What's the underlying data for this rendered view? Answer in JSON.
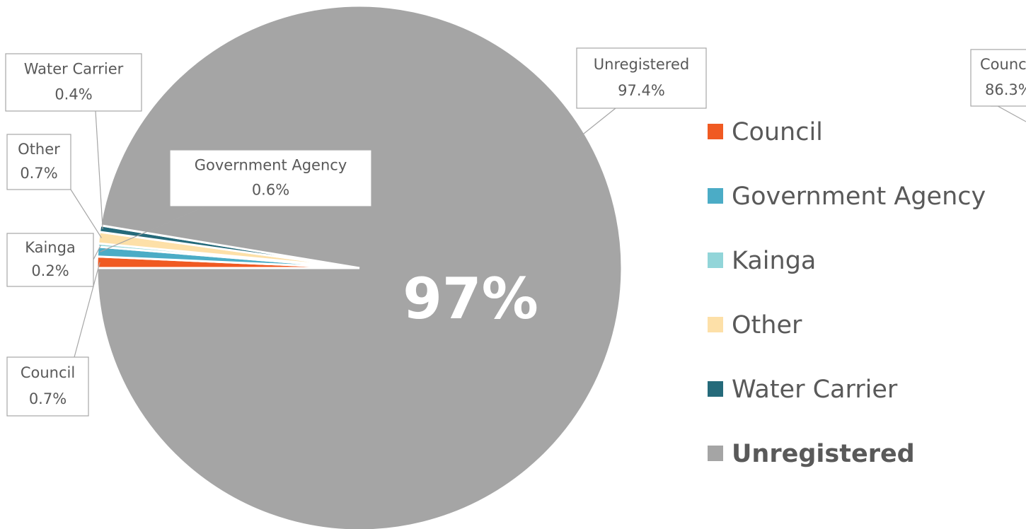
{
  "chart_data": {
    "type": "pie",
    "categories": [
      "Council",
      "Government Agency",
      "Kainga",
      "Other",
      "Water Carrier",
      "Unregistered"
    ],
    "values": [
      0.7,
      0.6,
      0.2,
      0.7,
      0.4,
      97.4
    ],
    "value_labels": [
      "0.7%",
      "0.6%",
      "0.2%",
      "0.7%",
      "0.4%",
      "97.4%"
    ],
    "colors": [
      "#f05a22",
      "#4bacc6",
      "#92d5d9",
      "#fde0a8",
      "#256a7a",
      "#a5a5a5"
    ],
    "center_label": "97%",
    "legend": "right",
    "annotations": [
      "Council",
      "86.3%"
    ]
  }
}
